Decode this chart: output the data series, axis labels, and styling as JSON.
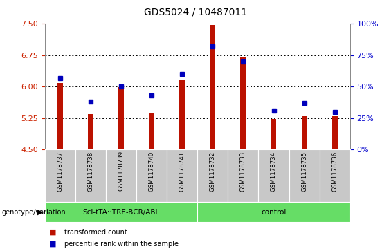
{
  "title": "GDS5024 / 10487011",
  "samples": [
    "GSM1178737",
    "GSM1178738",
    "GSM1178739",
    "GSM1178740",
    "GSM1178741",
    "GSM1178732",
    "GSM1178733",
    "GSM1178734",
    "GSM1178735",
    "GSM1178736"
  ],
  "red_values": [
    6.08,
    5.35,
    5.98,
    5.38,
    6.15,
    7.48,
    6.7,
    5.22,
    5.3,
    5.3
  ],
  "blue_percentiles": [
    57,
    38,
    50,
    43,
    60,
    82,
    70,
    31,
    37,
    30
  ],
  "ylim_left": [
    4.5,
    7.5
  ],
  "ylim_right": [
    0,
    100
  ],
  "yticks_left": [
    4.5,
    5.25,
    6.0,
    6.75,
    7.5
  ],
  "yticks_right": [
    0,
    25,
    50,
    75,
    100
  ],
  "bar_color": "#bb1100",
  "marker_color": "#0000bb",
  "bar_bottom": 4.5,
  "group1_label": "Scl-tTA::TRE-BCR/ABL",
  "group2_label": "control",
  "group1_n": 5,
  "group2_n": 5,
  "group_color": "#66dd66",
  "xlabel_group": "genotype/variation",
  "legend_red": "transformed count",
  "legend_blue": "percentile rank within the sample",
  "left_tick_color": "#cc2200",
  "right_tick_color": "#0000cc",
  "bar_width": 0.18,
  "label_bg": "#c8c8c8"
}
